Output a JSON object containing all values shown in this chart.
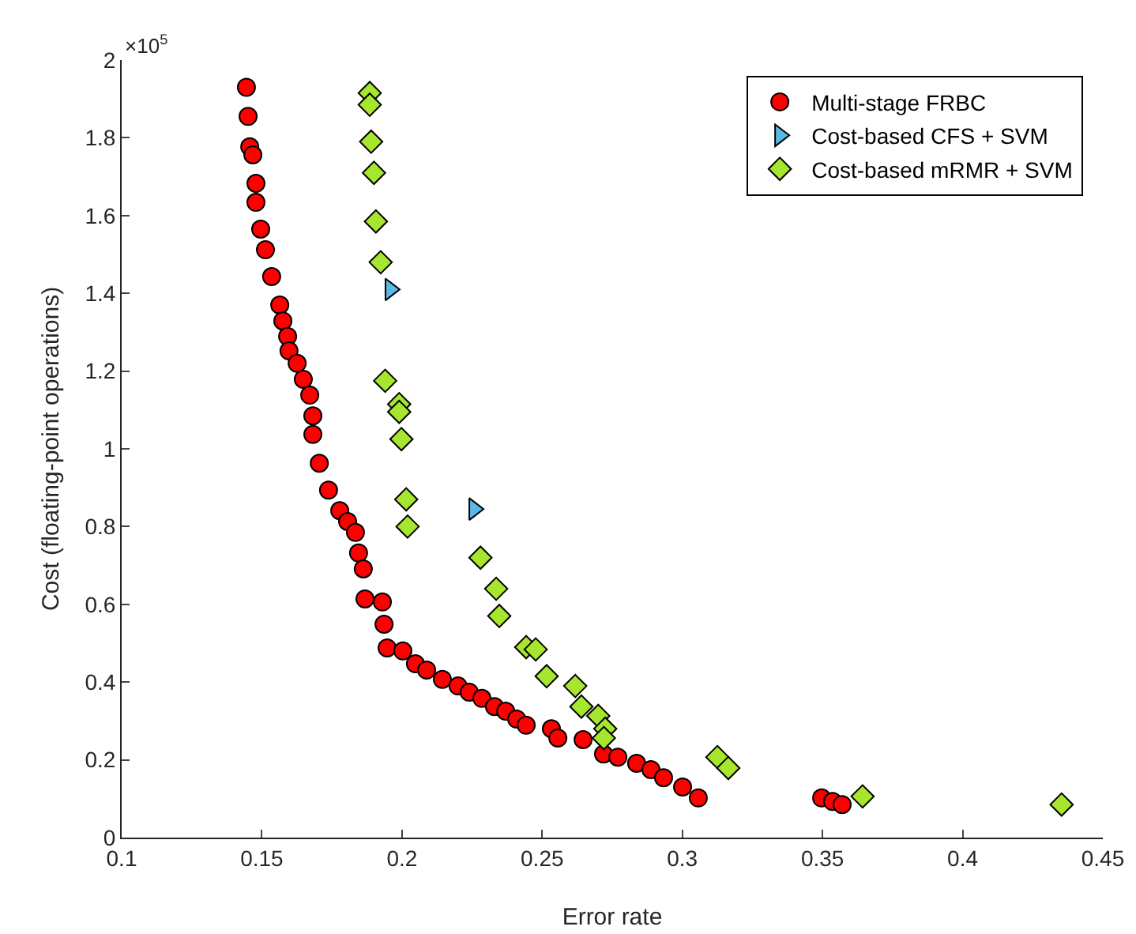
{
  "chart_data": {
    "type": "scatter",
    "xlabel": "Error rate",
    "ylabel": "Cost (floating-point operations)",
    "annotations": [
      "×10$^{5}$"
    ],
    "xlim": [
      0.1,
      0.45
    ],
    "xticks": [
      0.1,
      0.15,
      0.2,
      0.25,
      0.3,
      0.35,
      0.4,
      0.45
    ],
    "ylim": [
      0,
      2
    ],
    "yticks": [
      0,
      0.2,
      0.4,
      0.6,
      0.8,
      1,
      1.2,
      1.4,
      1.6,
      1.8,
      2
    ],
    "grid": false,
    "legend": "top right",
    "series": [
      {
        "name": "Multi-stage FRBC",
        "color": "#ff0000",
        "marker": "circle",
        "x": [
          0.1445,
          0.1451,
          0.1457,
          0.1468,
          0.1479,
          0.1479,
          0.1496,
          0.1513,
          0.1535,
          0.1564,
          0.1575,
          0.1592,
          0.1597,
          0.1626,
          0.1648,
          0.1671,
          0.1682,
          0.1682,
          0.1705,
          0.1738,
          0.1778,
          0.1806,
          0.1834,
          0.1845,
          0.1862,
          0.1868,
          0.193,
          0.1936,
          0.1947,
          0.2003,
          0.2048,
          0.2088,
          0.2144,
          0.22,
          0.224,
          0.2285,
          0.233,
          0.237,
          0.2409,
          0.2443,
          0.2533,
          0.2556,
          0.2646,
          0.2719,
          0.277,
          0.2837,
          0.2888,
          0.2933,
          0.3001,
          0.3057,
          0.3497,
          0.3536,
          0.357
        ],
        "values": [
          1.93,
          1.855,
          1.777,
          1.756,
          1.683,
          1.634,
          1.565,
          1.512,
          1.443,
          1.37,
          1.329,
          1.289,
          1.252,
          1.22,
          1.179,
          1.138,
          1.085,
          1.037,
          0.963,
          0.894,
          0.841,
          0.813,
          0.785,
          0.732,
          0.691,
          0.614,
          0.606,
          0.549,
          0.488,
          0.48,
          0.447,
          0.431,
          0.407,
          0.39,
          0.374,
          0.358,
          0.337,
          0.325,
          0.305,
          0.289,
          0.28,
          0.256,
          0.252,
          0.215,
          0.207,
          0.191,
          0.175,
          0.154,
          0.13,
          0.102,
          0.102,
          0.093,
          0.085
        ]
      },
      {
        "name": "Cost-based CFS + SVM",
        "color": "#5cb8e6",
        "marker": "triangle",
        "x": [
          0.1958,
          0.2257
        ],
        "values": [
          1.41,
          0.845
        ]
      },
      {
        "name": "Cost-based mRMR + SVM",
        "color": "#a6e62e",
        "marker": "diamond",
        "x": [
          0.1885,
          0.1885,
          0.189,
          0.19,
          0.1907,
          0.1924,
          0.194,
          0.199,
          0.199,
          0.1998,
          0.2015,
          0.202,
          0.228,
          0.2336,
          0.2347,
          0.2443,
          0.2477,
          0.2516,
          0.2618,
          0.264,
          0.27,
          0.2725,
          0.272,
          0.3125,
          0.3164,
          0.3643,
          0.4353
        ],
        "values": [
          1.915,
          1.885,
          1.79,
          1.71,
          1.585,
          1.48,
          1.175,
          1.115,
          1.095,
          1.025,
          0.87,
          0.8,
          0.72,
          0.64,
          0.57,
          0.49,
          0.484,
          0.415,
          0.39,
          0.337,
          0.313,
          0.28,
          0.256,
          0.207,
          0.179,
          0.106,
          0.085
        ]
      }
    ]
  }
}
